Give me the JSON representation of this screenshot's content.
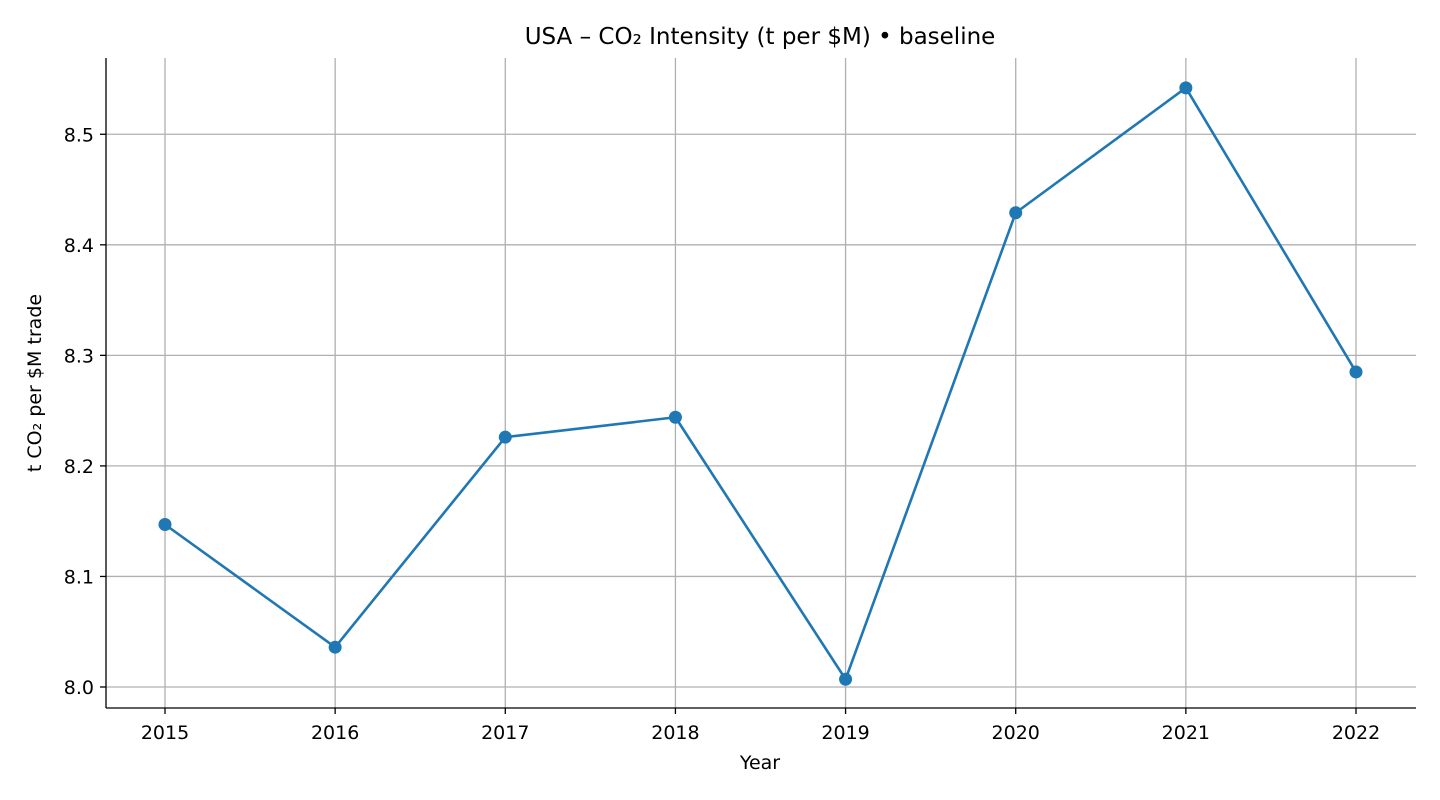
{
  "chart_data": {
    "type": "line",
    "title": "USA – CO₂ Intensity (t per $M) • baseline",
    "xlabel": "Year",
    "ylabel": "t CO₂ per $M trade",
    "x": [
      2015,
      2016,
      2017,
      2018,
      2019,
      2020,
      2021,
      2022
    ],
    "series": [
      {
        "values": [
          8.147,
          8.036,
          8.226,
          8.244,
          8.007,
          8.429,
          8.542,
          8.285
        ],
        "color": "#1f77b4",
        "marker": "circle"
      }
    ],
    "xticks": [
      "2015",
      "2016",
      "2017",
      "2018",
      "2019",
      "2020",
      "2021",
      "2022"
    ],
    "yticks": [
      "8.0",
      "8.1",
      "8.2",
      "8.3",
      "8.4",
      "8.5"
    ],
    "ylim": [
      7.981,
      8.569
    ],
    "grid": true,
    "legend": "none"
  }
}
